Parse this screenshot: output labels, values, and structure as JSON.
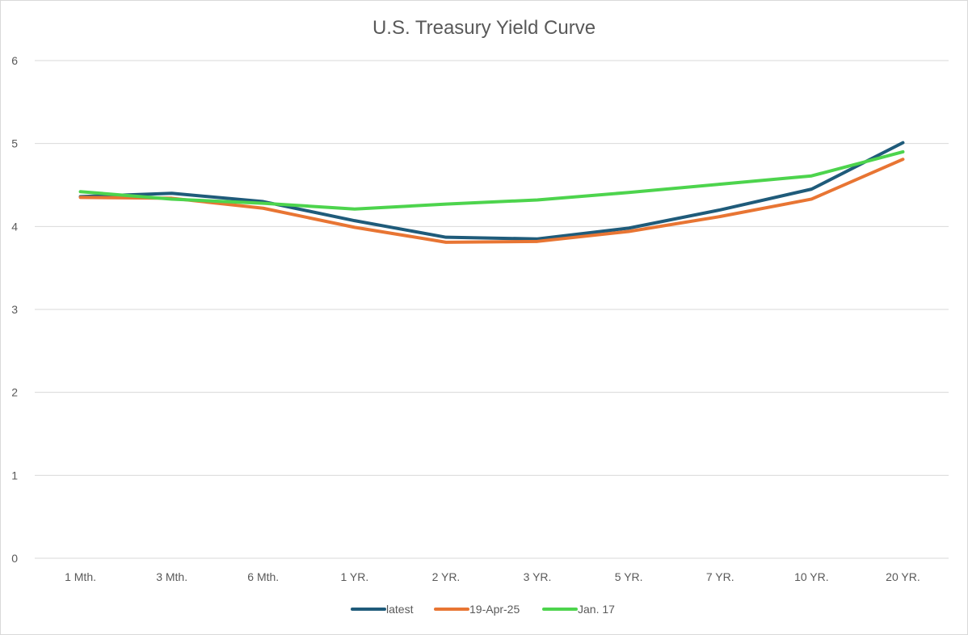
{
  "chart_data": {
    "type": "line",
    "title": "U.S. Treasury Yield Curve",
    "xlabel": "",
    "ylabel": "",
    "ylim": [
      0,
      6
    ],
    "yticks": [
      "0",
      "1",
      "2",
      "3",
      "4",
      "5",
      "6"
    ],
    "grid": true,
    "legend_position": "bottom",
    "categories": [
      "1 Mth.",
      "3 Mth.",
      "6 Mth.",
      "1 YR.",
      "2 YR.",
      "3 YR.",
      "5 YR.",
      "7 YR.",
      "10 YR.",
      "20 YR."
    ],
    "series": [
      {
        "name": "latest",
        "color": "#1f5b7a",
        "values": [
          4.36,
          4.4,
          4.3,
          4.07,
          3.87,
          3.85,
          3.98,
          4.2,
          4.45,
          5.01
        ]
      },
      {
        "name": "19-Apr-25",
        "color": "#e87533",
        "values": [
          4.35,
          4.34,
          4.22,
          3.99,
          3.81,
          3.82,
          3.94,
          4.12,
          4.33,
          4.81
        ]
      },
      {
        "name": "Jan. 17",
        "color": "#4dd44d",
        "values": [
          4.42,
          4.33,
          4.28,
          4.21,
          4.27,
          4.32,
          4.41,
          4.51,
          4.61,
          4.9
        ]
      }
    ]
  }
}
